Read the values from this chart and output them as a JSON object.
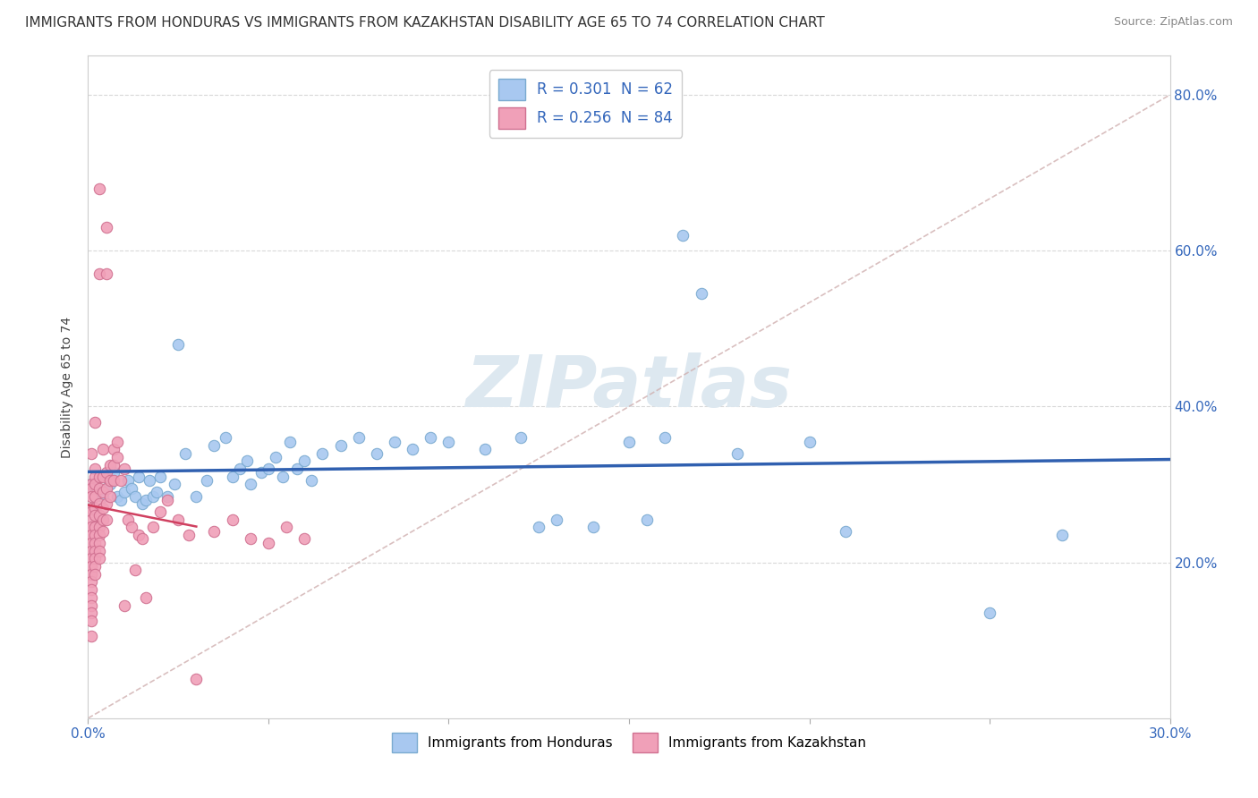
{
  "title": "IMMIGRANTS FROM HONDURAS VS IMMIGRANTS FROM KAZAKHSTAN DISABILITY AGE 65 TO 74 CORRELATION CHART",
  "source": "Source: ZipAtlas.com",
  "ylabel": "Disability Age 65 to 74",
  "honduras_color": "#a8c8f0",
  "honduras_edge_color": "#7aaad0",
  "kazakhstan_color": "#f0a0b8",
  "kazakhstan_edge_color": "#d07090",
  "honduras_line_color": "#3060b0",
  "kazakhstan_line_color": "#d04060",
  "ref_line_color": "#d0b0b0",
  "watermark_color": "#dde8f0",
  "grid_color": "#d8d8d8",
  "xlim": [
    0.0,
    0.3
  ],
  "ylim": [
    0.0,
    0.85
  ],
  "honduras_points": [
    [
      0.001,
      0.3
    ],
    [
      0.002,
      0.295
    ],
    [
      0.003,
      0.31
    ],
    [
      0.004,
      0.285
    ],
    [
      0.005,
      0.295
    ],
    [
      0.006,
      0.3
    ],
    [
      0.007,
      0.315
    ],
    [
      0.008,
      0.285
    ],
    [
      0.009,
      0.28
    ],
    [
      0.01,
      0.29
    ],
    [
      0.011,
      0.305
    ],
    [
      0.012,
      0.295
    ],
    [
      0.013,
      0.285
    ],
    [
      0.014,
      0.31
    ],
    [
      0.015,
      0.275
    ],
    [
      0.016,
      0.28
    ],
    [
      0.017,
      0.305
    ],
    [
      0.018,
      0.285
    ],
    [
      0.019,
      0.29
    ],
    [
      0.02,
      0.31
    ],
    [
      0.022,
      0.285
    ],
    [
      0.024,
      0.3
    ],
    [
      0.025,
      0.48
    ],
    [
      0.027,
      0.34
    ],
    [
      0.03,
      0.285
    ],
    [
      0.033,
      0.305
    ],
    [
      0.035,
      0.35
    ],
    [
      0.038,
      0.36
    ],
    [
      0.04,
      0.31
    ],
    [
      0.042,
      0.32
    ],
    [
      0.044,
      0.33
    ],
    [
      0.045,
      0.3
    ],
    [
      0.048,
      0.315
    ],
    [
      0.05,
      0.32
    ],
    [
      0.052,
      0.335
    ],
    [
      0.054,
      0.31
    ],
    [
      0.056,
      0.355
    ],
    [
      0.058,
      0.32
    ],
    [
      0.06,
      0.33
    ],
    [
      0.062,
      0.305
    ],
    [
      0.065,
      0.34
    ],
    [
      0.07,
      0.35
    ],
    [
      0.075,
      0.36
    ],
    [
      0.08,
      0.34
    ],
    [
      0.085,
      0.355
    ],
    [
      0.09,
      0.345
    ],
    [
      0.095,
      0.36
    ],
    [
      0.1,
      0.355
    ],
    [
      0.11,
      0.345
    ],
    [
      0.12,
      0.36
    ],
    [
      0.125,
      0.245
    ],
    [
      0.13,
      0.255
    ],
    [
      0.14,
      0.245
    ],
    [
      0.15,
      0.355
    ],
    [
      0.155,
      0.255
    ],
    [
      0.16,
      0.36
    ],
    [
      0.165,
      0.62
    ],
    [
      0.17,
      0.545
    ],
    [
      0.18,
      0.34
    ],
    [
      0.2,
      0.355
    ],
    [
      0.21,
      0.24
    ],
    [
      0.25,
      0.135
    ],
    [
      0.27,
      0.235
    ]
  ],
  "kazakhstan_points": [
    [
      0.001,
      0.3
    ],
    [
      0.001,
      0.295
    ],
    [
      0.001,
      0.285
    ],
    [
      0.001,
      0.27
    ],
    [
      0.001,
      0.265
    ],
    [
      0.001,
      0.255
    ],
    [
      0.001,
      0.245
    ],
    [
      0.001,
      0.235
    ],
    [
      0.001,
      0.225
    ],
    [
      0.001,
      0.215
    ],
    [
      0.001,
      0.205
    ],
    [
      0.001,
      0.195
    ],
    [
      0.001,
      0.185
    ],
    [
      0.001,
      0.175
    ],
    [
      0.001,
      0.165
    ],
    [
      0.001,
      0.155
    ],
    [
      0.001,
      0.145
    ],
    [
      0.001,
      0.135
    ],
    [
      0.001,
      0.125
    ],
    [
      0.001,
      0.105
    ],
    [
      0.002,
      0.32
    ],
    [
      0.002,
      0.31
    ],
    [
      0.002,
      0.3
    ],
    [
      0.002,
      0.285
    ],
    [
      0.002,
      0.27
    ],
    [
      0.002,
      0.26
    ],
    [
      0.002,
      0.245
    ],
    [
      0.002,
      0.235
    ],
    [
      0.002,
      0.225
    ],
    [
      0.002,
      0.215
    ],
    [
      0.002,
      0.205
    ],
    [
      0.002,
      0.195
    ],
    [
      0.002,
      0.185
    ],
    [
      0.003,
      0.68
    ],
    [
      0.003,
      0.57
    ],
    [
      0.003,
      0.31
    ],
    [
      0.003,
      0.295
    ],
    [
      0.003,
      0.275
    ],
    [
      0.003,
      0.26
    ],
    [
      0.003,
      0.245
    ],
    [
      0.003,
      0.235
    ],
    [
      0.003,
      0.225
    ],
    [
      0.003,
      0.215
    ],
    [
      0.003,
      0.205
    ],
    [
      0.004,
      0.345
    ],
    [
      0.004,
      0.31
    ],
    [
      0.004,
      0.29
    ],
    [
      0.004,
      0.27
    ],
    [
      0.004,
      0.255
    ],
    [
      0.004,
      0.24
    ],
    [
      0.005,
      0.63
    ],
    [
      0.005,
      0.57
    ],
    [
      0.005,
      0.315
    ],
    [
      0.005,
      0.295
    ],
    [
      0.005,
      0.275
    ],
    [
      0.005,
      0.255
    ],
    [
      0.006,
      0.325
    ],
    [
      0.006,
      0.305
    ],
    [
      0.006,
      0.285
    ],
    [
      0.007,
      0.345
    ],
    [
      0.007,
      0.325
    ],
    [
      0.007,
      0.305
    ],
    [
      0.008,
      0.355
    ],
    [
      0.008,
      0.335
    ],
    [
      0.009,
      0.305
    ],
    [
      0.01,
      0.32
    ],
    [
      0.01,
      0.145
    ],
    [
      0.011,
      0.255
    ],
    [
      0.012,
      0.245
    ],
    [
      0.013,
      0.19
    ],
    [
      0.014,
      0.235
    ],
    [
      0.015,
      0.23
    ],
    [
      0.016,
      0.155
    ],
    [
      0.018,
      0.245
    ],
    [
      0.02,
      0.265
    ],
    [
      0.022,
      0.28
    ],
    [
      0.025,
      0.255
    ],
    [
      0.028,
      0.235
    ],
    [
      0.03,
      0.05
    ],
    [
      0.035,
      0.24
    ],
    [
      0.04,
      0.255
    ],
    [
      0.045,
      0.23
    ],
    [
      0.05,
      0.225
    ],
    [
      0.055,
      0.245
    ],
    [
      0.06,
      0.23
    ],
    [
      0.002,
      0.38
    ],
    [
      0.001,
      0.34
    ]
  ]
}
